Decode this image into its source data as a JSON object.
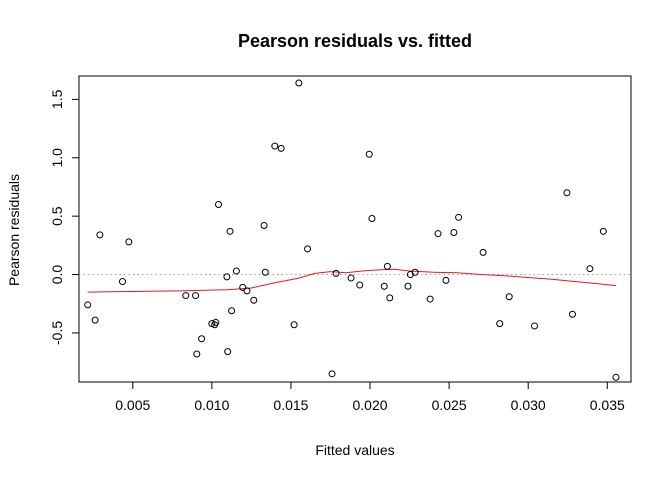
{
  "chart_data": {
    "type": "scatter",
    "title": "Pearson residuals vs. fitted",
    "xlabel": "Fitted values",
    "ylabel": "Pearson residuals",
    "xlim": [
      0.0016,
      0.0365
    ],
    "ylim": [
      -0.92,
      1.7
    ],
    "xticks": [
      {
        "value": 0.005,
        "label": "0.005"
      },
      {
        "value": 0.01,
        "label": "0.010"
      },
      {
        "value": 0.015,
        "label": "0.015"
      },
      {
        "value": 0.02,
        "label": "0.020"
      },
      {
        "value": 0.025,
        "label": "0.025"
      },
      {
        "value": 0.03,
        "label": "0.030"
      },
      {
        "value": 0.035,
        "label": "0.035"
      }
    ],
    "yticks": [
      {
        "value": -0.5,
        "label": "-0.5"
      },
      {
        "value": 0.0,
        "label": "0.0"
      },
      {
        "value": 0.5,
        "label": "0.5"
      },
      {
        "value": 1.0,
        "label": "1.0"
      },
      {
        "value": 1.5,
        "label": "1.5"
      }
    ],
    "reference_line": {
      "y": 0,
      "style": "dotted",
      "color": "#a0a0a0"
    },
    "points": [
      {
        "x": 0.00215,
        "y": -0.26
      },
      {
        "x": 0.00262,
        "y": -0.39
      },
      {
        "x": 0.00292,
        "y": 0.34
      },
      {
        "x": 0.00435,
        "y": -0.06
      },
      {
        "x": 0.00475,
        "y": 0.28
      },
      {
        "x": 0.00835,
        "y": -0.18
      },
      {
        "x": 0.00897,
        "y": -0.18
      },
      {
        "x": 0.00905,
        "y": -0.68
      },
      {
        "x": 0.00935,
        "y": -0.55
      },
      {
        "x": 0.01,
        "y": -0.42
      },
      {
        "x": 0.01018,
        "y": -0.43
      },
      {
        "x": 0.01025,
        "y": -0.41
      },
      {
        "x": 0.01042,
        "y": 0.6
      },
      {
        "x": 0.01095,
        "y": -0.02
      },
      {
        "x": 0.011,
        "y": -0.66
      },
      {
        "x": 0.01115,
        "y": 0.37
      },
      {
        "x": 0.01125,
        "y": -0.31
      },
      {
        "x": 0.01155,
        "y": 0.03
      },
      {
        "x": 0.01195,
        "y": -0.11
      },
      {
        "x": 0.01222,
        "y": -0.14
      },
      {
        "x": 0.01265,
        "y": -0.22
      },
      {
        "x": 0.0133,
        "y": 0.42
      },
      {
        "x": 0.01338,
        "y": 0.02
      },
      {
        "x": 0.01398,
        "y": 1.1
      },
      {
        "x": 0.01438,
        "y": 1.08
      },
      {
        "x": 0.0152,
        "y": -0.43
      },
      {
        "x": 0.0155,
        "y": 1.64
      },
      {
        "x": 0.01605,
        "y": 0.22
      },
      {
        "x": 0.0176,
        "y": -0.85
      },
      {
        "x": 0.01785,
        "y": 0.01
      },
      {
        "x": 0.0188,
        "y": -0.03
      },
      {
        "x": 0.01935,
        "y": -0.09
      },
      {
        "x": 0.01995,
        "y": 1.03
      },
      {
        "x": 0.02012,
        "y": 0.48
      },
      {
        "x": 0.0209,
        "y": -0.1
      },
      {
        "x": 0.0211,
        "y": 0.07
      },
      {
        "x": 0.02125,
        "y": -0.2
      },
      {
        "x": 0.0224,
        "y": -0.1
      },
      {
        "x": 0.02255,
        "y": 0.0
      },
      {
        "x": 0.02285,
        "y": 0.02
      },
      {
        "x": 0.0238,
        "y": -0.21
      },
      {
        "x": 0.0243,
        "y": 0.35
      },
      {
        "x": 0.0248,
        "y": -0.05
      },
      {
        "x": 0.0253,
        "y": 0.36
      },
      {
        "x": 0.0256,
        "y": 0.49
      },
      {
        "x": 0.02715,
        "y": 0.19
      },
      {
        "x": 0.0282,
        "y": -0.42
      },
      {
        "x": 0.0288,
        "y": -0.19
      },
      {
        "x": 0.0304,
        "y": -0.44
      },
      {
        "x": 0.03245,
        "y": 0.7
      },
      {
        "x": 0.0328,
        "y": -0.34
      },
      {
        "x": 0.0339,
        "y": 0.05
      },
      {
        "x": 0.03475,
        "y": 0.37
      },
      {
        "x": 0.03555,
        "y": -0.88
      }
    ],
    "smooth_color": "#e41a1c",
    "smooth_line": [
      [
        0.00215,
        -0.15
      ],
      [
        0.0035,
        -0.148
      ],
      [
        0.005,
        -0.145
      ],
      [
        0.0065,
        -0.142
      ],
      [
        0.008,
        -0.14
      ],
      [
        0.0095,
        -0.135
      ],
      [
        0.011,
        -0.13
      ],
      [
        0.0125,
        -0.115
      ],
      [
        0.014,
        -0.07
      ],
      [
        0.0155,
        -0.03
      ],
      [
        0.0165,
        0.01
      ],
      [
        0.0175,
        0.025
      ],
      [
        0.0185,
        0.015
      ],
      [
        0.0195,
        0.03
      ],
      [
        0.0205,
        0.04
      ],
      [
        0.0215,
        0.045
      ],
      [
        0.0225,
        0.03
      ],
      [
        0.024,
        0.02
      ],
      [
        0.0255,
        0.015
      ],
      [
        0.027,
        0.0
      ],
      [
        0.0285,
        -0.01
      ],
      [
        0.03,
        -0.025
      ],
      [
        0.0315,
        -0.04
      ],
      [
        0.033,
        -0.06
      ],
      [
        0.0345,
        -0.08
      ],
      [
        0.03555,
        -0.095
      ]
    ]
  }
}
